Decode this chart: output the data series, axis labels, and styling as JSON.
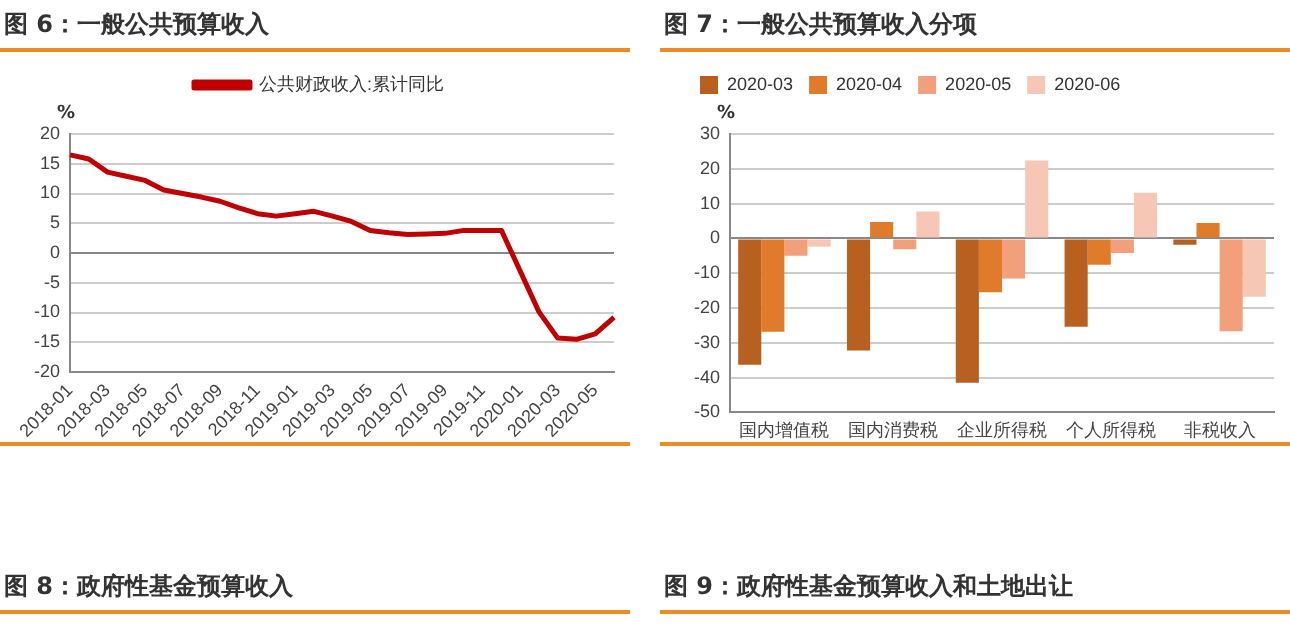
{
  "chart_data": [
    {
      "type": "line",
      "title": "图 6：一般公共预算收入",
      "ylabel": "%",
      "categories": [
        "2018-01",
        null,
        "2018-03",
        null,
        "2018-05",
        null,
        "2018-07",
        null,
        "2018-09",
        null,
        "2018-11",
        null,
        "2019-01",
        null,
        "2019-03",
        null,
        "2019-05",
        null,
        "2019-07",
        null,
        "2019-09",
        null,
        "2019-11",
        null,
        "2020-01",
        null,
        "2020-03",
        null,
        "2020-05",
        null
      ],
      "series": [
        {
          "name": "公共财政收入:累计同比",
          "color": "#c00000",
          "values": [
            16.5,
            15.8,
            13.6,
            12.9,
            12.2,
            10.6,
            10.0,
            9.4,
            8.7,
            7.6,
            6.6,
            6.2,
            6.6,
            7.0,
            6.2,
            5.3,
            3.8,
            3.4,
            3.1,
            3.2,
            3.3,
            3.8,
            3.8,
            3.8,
            null,
            -9.9,
            -14.3,
            -14.5,
            -13.6,
            -10.8
          ]
        }
      ],
      "ylim": [
        -20,
        20
      ],
      "yticks": [
        -20,
        -15,
        -10,
        -5,
        0,
        5,
        10,
        15,
        20
      ],
      "grid": "y",
      "legend": "top",
      "marker": "none",
      "line_style": "solid",
      "annotations": [
        "图 8：政府性基金预算收入"
      ]
    },
    {
      "type": "bar",
      "title": "图 7：一般公共预算收入分项",
      "ylabel": "%",
      "categories": [
        "国内增值税",
        "国内消费税",
        "企业所得税",
        "个人所得税",
        "非税收入"
      ],
      "series": [
        {
          "name": "2020-03",
          "color": "#b8601f",
          "values": [
            -36.3,
            -32.2,
            -41.5,
            -25.4,
            -1.8
          ]
        },
        {
          "name": "2020-04",
          "color": "#e07b2c",
          "values": [
            -26.8,
            4.7,
            -15.5,
            -7.6,
            4.4
          ]
        },
        {
          "name": "2020-05",
          "color": "#f2a07c",
          "values": [
            -5.0,
            -3.1,
            -11.5,
            -4.2,
            -26.7
          ]
        },
        {
          "name": "2020-06",
          "color": "#f7c7b6",
          "values": [
            -2.4,
            7.7,
            22.4,
            13.1,
            -16.8
          ]
        }
      ],
      "ylim": [
        -50,
        30
      ],
      "yticks": [
        -50,
        -40,
        -30,
        -20,
        -10,
        0,
        10,
        20,
        30
      ],
      "grid": "y",
      "legend": "top left",
      "annotations": [
        "图 9：政府性基金预算收入和土地出让"
      ]
    }
  ]
}
